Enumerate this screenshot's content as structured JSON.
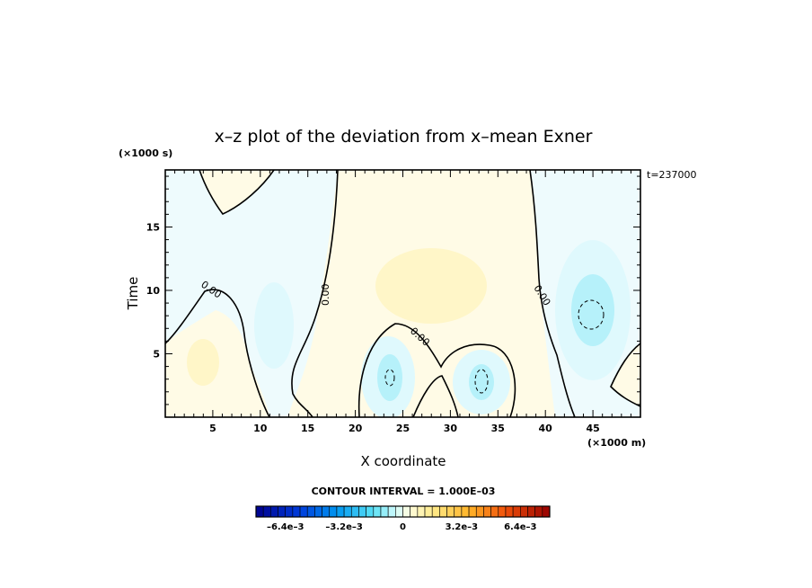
{
  "chart_data": {
    "type": "heatmap",
    "title": "x–z plot of the deviation from x–mean Exner",
    "xlabel": "X coordinate",
    "ylabel": "Time",
    "x_unit": "(×1000 m)",
    "y_unit": "(×1000 s)",
    "time_stamp": "t=237000",
    "xlim": [
      0,
      50
    ],
    "ylim": [
      0,
      19.5
    ],
    "x_ticks": [
      5,
      10,
      15,
      20,
      25,
      30,
      35,
      40,
      45
    ],
    "y_ticks": [
      5,
      10,
      15
    ],
    "contour_interval": "CONTOUR INTERVAL = 1.000E–03",
    "contour_labels": [
      "0.00",
      "0.00",
      "0.00",
      "0.00"
    ],
    "colorbar": {
      "min": -0.008,
      "max": 0.008,
      "step": 0.0004,
      "tick_labels": [
        "–6.4e–3",
        "–3.2e–3",
        "0",
        "3.2e–3",
        "6.4e–3"
      ],
      "tick_values": [
        -0.0064,
        -0.0032,
        0,
        0.0032,
        0.0064
      ]
    },
    "field_features": [
      {
        "x": 4,
        "y": 4,
        "value": 0.0008
      },
      {
        "x": 24,
        "y": 3,
        "value": -0.0015
      },
      {
        "x": 33.5,
        "y": 3,
        "value": -0.0012
      },
      {
        "x": 45,
        "y": 8.5,
        "value": -0.0015
      },
      {
        "x": 13,
        "y": 8,
        "value": -0.0006
      },
      {
        "x": 29,
        "y": 12,
        "value": 0.0005
      },
      {
        "x": 6,
        "y": 18,
        "value": 0.0004
      }
    ]
  }
}
